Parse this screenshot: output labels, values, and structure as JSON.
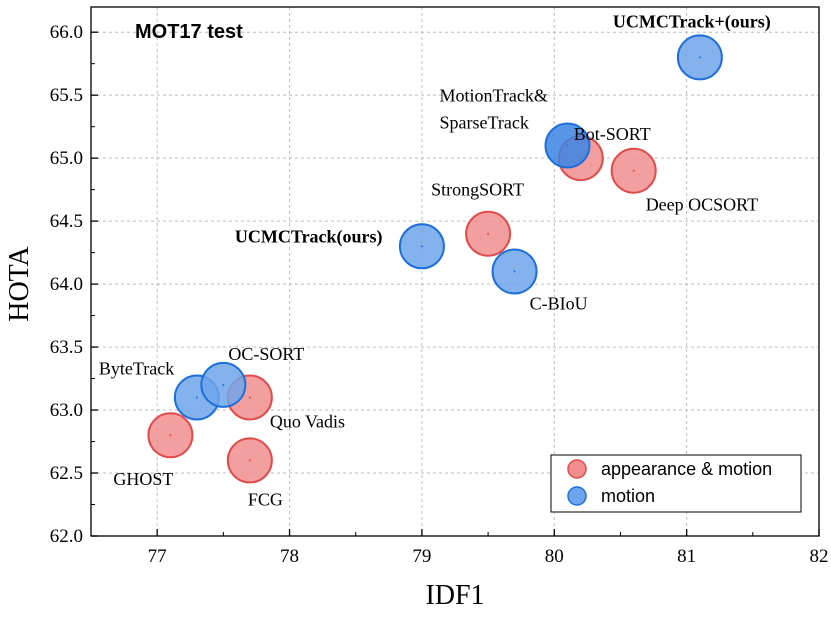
{
  "colors": {
    "appearance_fill": "#F28E8E",
    "appearance_stroke": "#E04B4B",
    "motion_fill": "#6FA4EA",
    "motion_stroke": "#1E6FD9",
    "motion_dark_fill": "#3B84E4"
  },
  "chart_data": {
    "type": "scatter",
    "title": "MOT17  test",
    "xlabel": "IDF1",
    "ylabel": "HOTA",
    "xlim": [
      76.5,
      82
    ],
    "ylim": [
      62.0,
      66.2
    ],
    "x_ticks": [
      "77",
      "78",
      "79",
      "80",
      "81",
      "82"
    ],
    "x_tick_values": [
      77,
      78,
      79,
      80,
      81,
      82
    ],
    "y_ticks": [
      "62.0",
      "62.5",
      "63.0",
      "63.5",
      "64.0",
      "64.5",
      "65.0",
      "65.5",
      "66.0"
    ],
    "y_tick_values": [
      62.0,
      62.5,
      63.0,
      63.5,
      64.0,
      64.5,
      65.0,
      65.5,
      66.0
    ],
    "grid": true,
    "legend_position": "bottom-right",
    "series": [
      {
        "name": "appearance & motion",
        "color": "#F28E8E",
        "points": [
          {
            "label": "GHOST",
            "x": 77.1,
            "y": 62.8
          },
          {
            "label": "FCG",
            "x": 77.7,
            "y": 62.6
          },
          {
            "label": "Quo Vadis",
            "x": 77.7,
            "y": 63.1
          },
          {
            "label": "StrongSORT",
            "x": 79.5,
            "y": 64.4
          },
          {
            "label": "Bot-SORT",
            "x": 80.2,
            "y": 65.0
          },
          {
            "label": "Deep OCSORT",
            "x": 80.6,
            "y": 64.9
          }
        ]
      },
      {
        "name": "motion",
        "color": "#6FA4EA",
        "points": [
          {
            "label": "ByteTrack",
            "x": 77.3,
            "y": 63.1
          },
          {
            "label": "OC-SORT",
            "x": 77.5,
            "y": 63.2
          },
          {
            "label": "UCMCTrack(ours)",
            "x": 79.0,
            "y": 64.3,
            "bold": true
          },
          {
            "label": "C-BIoU",
            "x": 79.7,
            "y": 64.1
          },
          {
            "label": "MotionTrack&\nSparseTrack",
            "x": 80.1,
            "y": 65.1
          },
          {
            "label": "UCMCTrack+(ours)",
            "x": 81.1,
            "y": 65.8,
            "bold": true
          }
        ]
      }
    ]
  }
}
